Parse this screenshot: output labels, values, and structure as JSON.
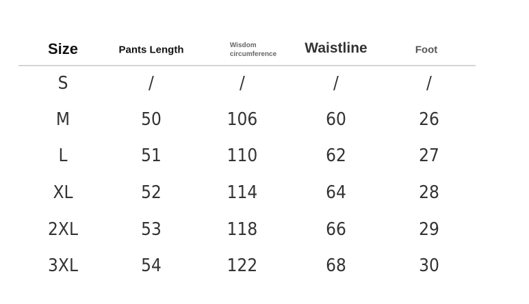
{
  "headers": [
    "Size",
    "Pants Length",
    "Wisdom circumference",
    "Waistline",
    "Foot"
  ],
  "header_wisdom_lines": [
    "Wisdom",
    "circumference"
  ],
  "rows": [
    [
      "S",
      "/",
      "/",
      "/",
      "/"
    ],
    [
      "M",
      "50",
      "106",
      "60",
      "26"
    ],
    [
      "L",
      "51",
      "110",
      "62",
      "27"
    ],
    [
      "XL",
      "52",
      "114",
      "64",
      "28"
    ],
    [
      "2XL",
      "53",
      "118",
      "66",
      "29"
    ],
    [
      "3XL",
      "54",
      "122",
      "68",
      "30"
    ]
  ]
}
